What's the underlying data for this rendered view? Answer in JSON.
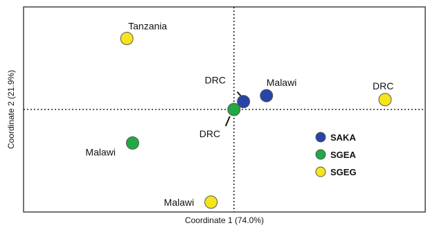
{
  "chart_data": {
    "type": "scatter",
    "xlabel": "Coordinate 1 (74.0%)",
    "ylabel": "Coordinate 2 (21.9%)",
    "xlim": [
      -1.1,
      1.0
    ],
    "ylim": [
      -0.52,
      0.52
    ],
    "zero_lines": true,
    "grid": false,
    "legend_position": "right",
    "series": [
      {
        "name": "SAKA",
        "color": "#2744a8",
        "points": [
          {
            "x": 0.05,
            "y": 0.04,
            "label": "DRC"
          },
          {
            "x": 0.17,
            "y": 0.07,
            "label": "Malawi"
          }
        ]
      },
      {
        "name": "SGEA",
        "color": "#22a844",
        "points": [
          {
            "x": 0.0,
            "y": 0.0,
            "label": "DRC"
          },
          {
            "x": -0.53,
            "y": -0.17,
            "label": "Malawi"
          }
        ]
      },
      {
        "name": "SGEG",
        "color": "#f5e51c",
        "points": [
          {
            "x": -0.56,
            "y": 0.36,
            "label": "Tanzania"
          },
          {
            "x": 0.79,
            "y": 0.05,
            "label": "DRC"
          },
          {
            "x": -0.12,
            "y": -0.47,
            "label": "Malawi"
          }
        ]
      }
    ]
  }
}
